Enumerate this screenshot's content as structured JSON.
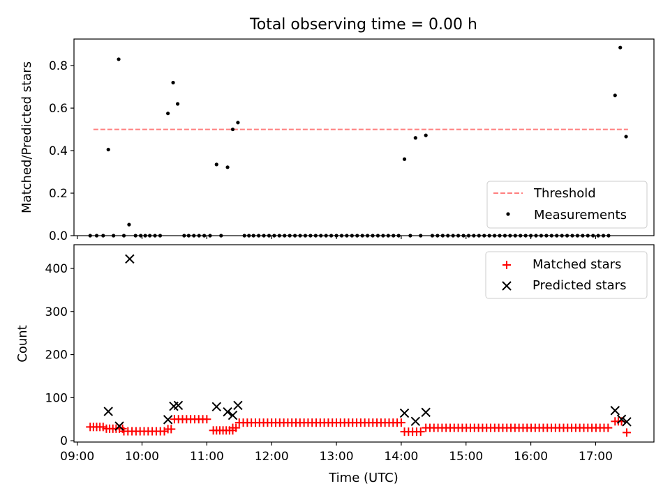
{
  "chart_data": [
    {
      "type": "scatter",
      "title": "Total observing time = 0.00 h",
      "xlabel": "",
      "ylabel": "Matched/Predicted stars",
      "ylim": [
        0,
        0.925
      ],
      "yticks": [
        "0.0",
        "0.2",
        "0.4",
        "0.6",
        "0.8"
      ],
      "legend": {
        "placement": "lower-right",
        "entries": [
          "Threshold",
          "Measurements"
        ]
      },
      "threshold": {
        "name": "Threshold",
        "value": 0.5,
        "x_start": 9.25,
        "x_end": 17.5,
        "color": "#ff7f7f"
      },
      "series": [
        {
          "name": "Measurements",
          "color": "#000000",
          "points": [
            [
              9.2,
              0
            ],
            [
              9.3,
              0
            ],
            [
              9.4,
              0
            ],
            [
              9.48,
              0.405
            ],
            [
              9.56,
              0
            ],
            [
              9.64,
              0.83
            ],
            [
              9.72,
              0
            ],
            [
              9.8,
              0.052
            ],
            [
              9.9,
              0
            ],
            [
              9.98,
              0
            ],
            [
              10.05,
              0
            ],
            [
              10.12,
              0
            ],
            [
              10.2,
              0
            ],
            [
              10.28,
              0
            ],
            [
              10.4,
              0.575
            ],
            [
              10.48,
              0.72
            ],
            [
              10.55,
              0.62
            ],
            [
              10.65,
              0
            ],
            [
              10.72,
              0
            ],
            [
              10.8,
              0
            ],
            [
              10.88,
              0
            ],
            [
              10.96,
              0
            ],
            [
              11.05,
              0
            ],
            [
              11.15,
              0.335
            ],
            [
              11.22,
              0
            ],
            [
              11.32,
              0.322
            ],
            [
              11.4,
              0.5
            ],
            [
              11.48,
              0.532
            ],
            [
              11.58,
              0
            ],
            [
              11.65,
              0
            ],
            [
              11.72,
              0
            ],
            [
              11.8,
              0
            ],
            [
              11.88,
              0
            ],
            [
              11.96,
              0
            ],
            [
              12.04,
              0
            ],
            [
              12.12,
              0
            ],
            [
              12.2,
              0
            ],
            [
              12.28,
              0
            ],
            [
              12.36,
              0
            ],
            [
              12.44,
              0
            ],
            [
              12.52,
              0
            ],
            [
              12.6,
              0
            ],
            [
              12.68,
              0
            ],
            [
              12.76,
              0
            ],
            [
              12.84,
              0
            ],
            [
              12.92,
              0
            ],
            [
              13.0,
              0
            ],
            [
              13.08,
              0
            ],
            [
              13.16,
              0
            ],
            [
              13.24,
              0
            ],
            [
              13.32,
              0
            ],
            [
              13.4,
              0
            ],
            [
              13.48,
              0
            ],
            [
              13.56,
              0
            ],
            [
              13.64,
              0
            ],
            [
              13.72,
              0
            ],
            [
              13.8,
              0
            ],
            [
              13.88,
              0
            ],
            [
              13.96,
              0
            ],
            [
              14.05,
              0.36
            ],
            [
              14.14,
              0
            ],
            [
              14.22,
              0.46
            ],
            [
              14.3,
              0
            ],
            [
              14.38,
              0.472
            ],
            [
              14.48,
              0
            ],
            [
              14.56,
              0
            ],
            [
              14.64,
              0
            ],
            [
              14.72,
              0
            ],
            [
              14.8,
              0
            ],
            [
              14.88,
              0
            ],
            [
              14.96,
              0
            ],
            [
              15.04,
              0
            ],
            [
              15.12,
              0
            ],
            [
              15.2,
              0
            ],
            [
              15.28,
              0
            ],
            [
              15.36,
              0
            ],
            [
              15.44,
              0
            ],
            [
              15.52,
              0
            ],
            [
              15.6,
              0
            ],
            [
              15.68,
              0
            ],
            [
              15.76,
              0
            ],
            [
              15.84,
              0
            ],
            [
              15.92,
              0
            ],
            [
              16.0,
              0
            ],
            [
              16.08,
              0
            ],
            [
              16.16,
              0
            ],
            [
              16.24,
              0
            ],
            [
              16.32,
              0
            ],
            [
              16.4,
              0
            ],
            [
              16.48,
              0
            ],
            [
              16.56,
              0
            ],
            [
              16.64,
              0
            ],
            [
              16.72,
              0
            ],
            [
              16.8,
              0
            ],
            [
              16.88,
              0
            ],
            [
              16.96,
              0
            ],
            [
              17.04,
              0
            ],
            [
              17.12,
              0
            ],
            [
              17.2,
              0
            ],
            [
              17.3,
              0.66
            ],
            [
              17.38,
              0.885
            ],
            [
              17.47,
              0.466
            ]
          ]
        }
      ]
    },
    {
      "type": "scatter",
      "title": "",
      "xlabel": "Time (UTC)",
      "ylabel": "Count",
      "ylim": [
        -3,
        455
      ],
      "yticks": [
        "0",
        "100",
        "200",
        "300",
        "400"
      ],
      "xlim": [
        8.95,
        17.9
      ],
      "xticks": [
        {
          "value": 9,
          "label": "09:00"
        },
        {
          "value": 10,
          "label": "10:00"
        },
        {
          "value": 11,
          "label": "11:00"
        },
        {
          "value": 12,
          "label": "12:00"
        },
        {
          "value": 13,
          "label": "13:00"
        },
        {
          "value": 14,
          "label": "14:00"
        },
        {
          "value": 15,
          "label": "15:00"
        },
        {
          "value": 16,
          "label": "16:00"
        },
        {
          "value": 17,
          "label": "17:00"
        }
      ],
      "legend": {
        "placement": "top-right",
        "entries": [
          "Matched stars",
          "Predicted stars"
        ]
      },
      "series": [
        {
          "name": "Matched stars",
          "marker": "plus",
          "color": "#ff0000",
          "groups": [
            {
              "x_start": 9.2,
              "x_end": 9.4,
              "step": 0.05,
              "y": 32
            },
            {
              "x_start": 9.45,
              "x_end": 9.7,
              "step": 0.05,
              "y": 28
            },
            {
              "x_start": 9.72,
              "x_end": 10.4,
              "step": 0.0625,
              "y": 22
            },
            {
              "x_start": 10.4,
              "x_end": 10.45,
              "step": 0.05,
              "y": 27
            },
            {
              "x_start": 10.5,
              "x_end": 11.0,
              "step": 0.0625,
              "y": 50
            },
            {
              "x_start": 11.1,
              "x_end": 11.4,
              "step": 0.05,
              "y": 24
            },
            {
              "x_start": 11.4,
              "x_end": 11.45,
              "step": 0.05,
              "y": 30
            },
            {
              "x_start": 11.5,
              "x_end": 14.0,
              "step": 0.0625,
              "y": 42
            },
            {
              "x_start": 14.05,
              "x_end": 14.3,
              "step": 0.0625,
              "y": 21
            },
            {
              "x_start": 14.38,
              "x_end": 17.25,
              "step": 0.0625,
              "y": 30
            },
            {
              "x_start": 17.3,
              "x_end": 17.4,
              "step": 0.05,
              "y": 45
            },
            {
              "x_start": 17.48,
              "x_end": 17.48,
              "step": 0.05,
              "y": 19
            }
          ]
        },
        {
          "name": "Predicted stars",
          "marker": "x",
          "color": "#000000",
          "points": [
            [
              9.48,
              68
            ],
            [
              9.65,
              34
            ],
            [
              9.81,
              422
            ],
            [
              10.4,
              49
            ],
            [
              10.49,
              80
            ],
            [
              10.56,
              82
            ],
            [
              11.15,
              79
            ],
            [
              11.32,
              67
            ],
            [
              11.4,
              59
            ],
            [
              11.48,
              82
            ],
            [
              14.05,
              64
            ],
            [
              14.22,
              45
            ],
            [
              14.38,
              66
            ],
            [
              17.3,
              70
            ],
            [
              17.4,
              50
            ],
            [
              17.48,
              44
            ]
          ]
        }
      ]
    }
  ]
}
